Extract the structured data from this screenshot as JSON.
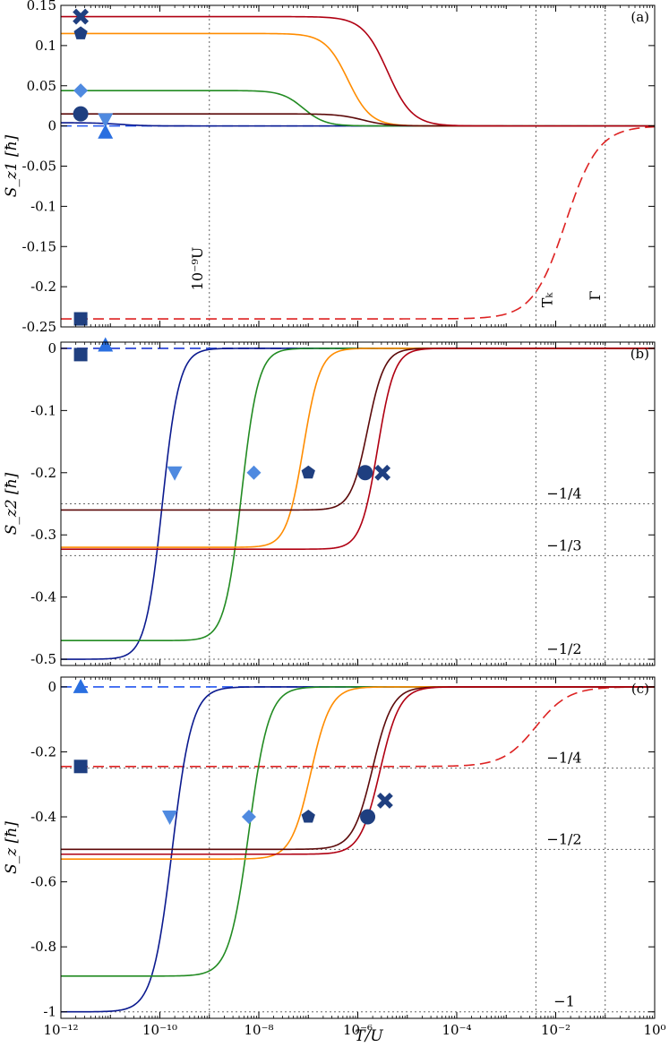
{
  "figure": {
    "xlabel": "T/U",
    "x_scale": "log10",
    "xlim_log10": [
      -12,
      0
    ],
    "x_ticks_log10": [
      -12,
      -10,
      -8,
      -6,
      -4,
      -2,
      0
    ],
    "x_tick_labels": [
      "10⁻¹²",
      "10⁻¹⁰",
      "10⁻⁸",
      "10⁻⁶",
      "10⁻⁴",
      "10⁻²",
      "10⁰"
    ],
    "vlines_log10": [
      -9,
      -2.4,
      -1
    ],
    "vline_labels": {
      "u9": "10⁻⁹U",
      "tk": "Tₖ",
      "gamma": "Γ"
    }
  },
  "chart_data": [
    {
      "type": "line",
      "panel": "(a)",
      "ylabel": "S_z1 [ħ]",
      "ylim": [
        -0.25,
        0.15
      ],
      "y_ticks": [
        0.15,
        0.1,
        0.05,
        0,
        -0.05,
        -0.1,
        -0.15,
        -0.2,
        -0.25
      ],
      "y_tick_labels": [
        "0.15",
        "0.1",
        "0.05",
        "0",
        "-0.05",
        "-0.1",
        "-0.15",
        "-0.2",
        "-0.25"
      ],
      "hlines": [],
      "series": [
        {
          "marker": "square",
          "color": "#dd2222",
          "dashed": true,
          "start": -0.24,
          "end": 0.0,
          "mid": -1.8,
          "w": 0.33
        },
        {
          "marker": "triangle-up",
          "color": "#2255ee",
          "dashed": true,
          "start": 0.0,
          "end": 0.0,
          "mid": -8,
          "w": 0.3
        },
        {
          "marker": "triangle-down",
          "color": "#0b1a8f",
          "start": 0.004,
          "end": 0.0,
          "mid": -10.8,
          "w": 0.25
        },
        {
          "marker": "diamond",
          "color": "#228b22",
          "start": 0.044,
          "end": 0.0,
          "mid": -7.1,
          "w": 0.22
        },
        {
          "marker": "pentagon",
          "color": "#ff8c00",
          "start": 0.115,
          "end": 0.0,
          "mid": -6.2,
          "w": 0.23
        },
        {
          "marker": "circle",
          "color": "#5c0a0a",
          "start": 0.015,
          "end": 0.0,
          "mid": -5.9,
          "w": 0.25
        },
        {
          "marker": "cross",
          "color": "#b00012",
          "start": 0.136,
          "end": 0.0,
          "mid": -5.4,
          "w": 0.25
        }
      ],
      "markers": [
        {
          "shape": "cross",
          "x_log10": -11.6,
          "y": 0.136
        },
        {
          "shape": "pentagon",
          "x_log10": -11.6,
          "y": 0.115
        },
        {
          "shape": "diamond",
          "x_log10": -11.6,
          "y": 0.044
        },
        {
          "shape": "circle",
          "x_log10": -11.6,
          "y": 0.015
        },
        {
          "shape": "triangle-down",
          "x_log10": -11.1,
          "y": 0.008
        },
        {
          "shape": "triangle-up",
          "x_log10": -11.1,
          "y": -0.008
        },
        {
          "shape": "square",
          "x_log10": -11.6,
          "y": -0.24
        }
      ]
    },
    {
      "type": "line",
      "panel": "(b)",
      "ylabel": "S_z2 [ħ]",
      "ylim": [
        -0.51,
        0.01
      ],
      "y_ticks": [
        0,
        -0.1,
        -0.2,
        -0.3,
        -0.4,
        -0.5
      ],
      "y_tick_labels": [
        "0",
        "-0.1",
        "-0.2",
        "-0.3",
        "-0.4",
        "-0.5"
      ],
      "hlines": [
        {
          "y": -0.25,
          "label": "−1/4"
        },
        {
          "y": -0.3333,
          "label": "−1/3"
        },
        {
          "y": -0.5,
          "label": "−1/2"
        }
      ],
      "series": [
        {
          "marker": "square",
          "color": "#dd2222",
          "dashed": true,
          "start": 0.0,
          "end": 0.0,
          "mid": -6,
          "w": 0.3
        },
        {
          "marker": "triangle-up",
          "color": "#2255ee",
          "dashed": true,
          "start": 0.0,
          "end": 0.0,
          "mid": -6,
          "w": 0.3
        },
        {
          "marker": "triangle-down",
          "color": "#0b1a8f",
          "start": -0.5,
          "end": 0.0,
          "mid": -9.95,
          "w": 0.17
        },
        {
          "marker": "diamond",
          "color": "#228b22",
          "start": -0.47,
          "end": 0.0,
          "mid": -8.35,
          "w": 0.17
        },
        {
          "marker": "pentagon",
          "color": "#ff8c00",
          "start": -0.32,
          "end": 0.0,
          "mid": -7.1,
          "w": 0.17
        },
        {
          "marker": "circle",
          "color": "#5c0a0a",
          "start": -0.26,
          "end": 0.0,
          "mid": -5.8,
          "w": 0.17
        },
        {
          "marker": "cross",
          "color": "#b00012",
          "start": -0.323,
          "end": 0.0,
          "mid": -5.6,
          "w": 0.17
        }
      ],
      "markers": [
        {
          "shape": "triangle-up",
          "x_log10": -11.1,
          "y": 0.005
        },
        {
          "shape": "square",
          "x_log10": -11.6,
          "y": -0.01
        },
        {
          "shape": "triangle-down",
          "x_log10": -9.7,
          "y": -0.2
        },
        {
          "shape": "diamond",
          "x_log10": -8.1,
          "y": -0.2
        },
        {
          "shape": "pentagon",
          "x_log10": -7.0,
          "y": -0.2
        },
        {
          "shape": "circle",
          "x_log10": -5.85,
          "y": -0.2
        },
        {
          "shape": "cross",
          "x_log10": -5.5,
          "y": -0.2
        }
      ]
    },
    {
      "type": "line",
      "panel": "(c)",
      "ylabel": "S_z [ħ]",
      "ylim": [
        -1.02,
        0.03
      ],
      "y_ticks": [
        0,
        -0.2,
        -0.4,
        -0.6,
        -0.8,
        -1
      ],
      "y_tick_labels": [
        "0",
        "-0.2",
        "-0.4",
        "-0.6",
        "-0.8",
        "-1"
      ],
      "hlines": [
        {
          "y": -0.25,
          "label": "−1/4"
        },
        {
          "y": -0.5,
          "label": "−1/2"
        },
        {
          "y": -1.0,
          "label": "−1"
        }
      ],
      "series": [
        {
          "marker": "square",
          "color": "#dd2222",
          "dashed": true,
          "start": -0.245,
          "end": 0.0,
          "mid": -2.4,
          "w": 0.33
        },
        {
          "marker": "triangle-up",
          "color": "#2255ee",
          "dashed": true,
          "start": 0.0,
          "end": 0.0,
          "mid": -6,
          "w": 0.3
        },
        {
          "marker": "triangle-down",
          "color": "#0b1a8f",
          "start": -1.0,
          "end": 0.0,
          "mid": -9.75,
          "w": 0.2
        },
        {
          "marker": "diamond",
          "color": "#228b22",
          "start": -0.89,
          "end": 0.0,
          "mid": -8.2,
          "w": 0.2
        },
        {
          "marker": "pentagon",
          "color": "#ff8c00",
          "start": -0.53,
          "end": 0.0,
          "mid": -6.95,
          "w": 0.2
        },
        {
          "marker": "circle",
          "color": "#5c0a0a",
          "start": -0.5,
          "end": 0.0,
          "mid": -5.7,
          "w": 0.2
        },
        {
          "marker": "cross",
          "color": "#b00012",
          "start": -0.515,
          "end": 0.0,
          "mid": -5.55,
          "w": 0.2
        }
      ],
      "markers": [
        {
          "shape": "triangle-up",
          "x_log10": -11.6,
          "y": 0.0
        },
        {
          "shape": "square",
          "x_log10": -11.6,
          "y": -0.245
        },
        {
          "shape": "triangle-down",
          "x_log10": -9.8,
          "y": -0.4
        },
        {
          "shape": "diamond",
          "x_log10": -8.2,
          "y": -0.4
        },
        {
          "shape": "pentagon",
          "x_log10": -7.0,
          "y": -0.4
        },
        {
          "shape": "circle",
          "x_log10": -5.8,
          "y": -0.4
        },
        {
          "shape": "cross",
          "x_log10": -5.45,
          "y": -0.35
        }
      ]
    }
  ],
  "marker_style": {
    "dark": "#1f3f80",
    "light": "#4f8ae0",
    "bright": "#2a6fe0"
  }
}
